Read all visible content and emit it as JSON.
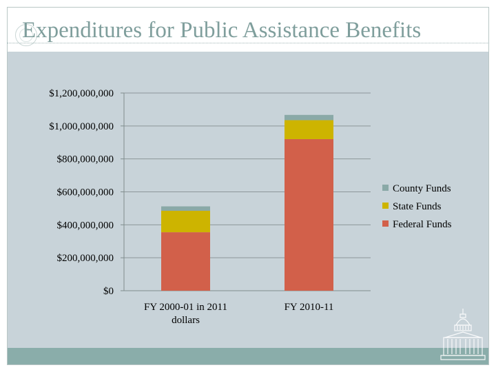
{
  "slide": {
    "title": "Expenditures for Public Assistance Benefits"
  },
  "colors": {
    "federal": "#d2604a",
    "state": "#cdb400",
    "county": "#8aa9a7",
    "background": "#c8d3d9",
    "title": "#7f9e9c",
    "footer": "#8aadaa"
  },
  "chart_data": {
    "type": "bar",
    "stacked": true,
    "categories": [
      "FY 2000-01 in 2011 dollars",
      "FY 2010-11"
    ],
    "category_label_lines": [
      [
        "FY 2000-01 in 2011",
        "dollars"
      ],
      [
        "FY 2010-11"
      ]
    ],
    "series": [
      {
        "name": "Federal Funds",
        "values": [
          355000000,
          920000000
        ],
        "color": "#d2604a"
      },
      {
        "name": "State Funds",
        "values": [
          130000000,
          115000000
        ],
        "color": "#cdb400"
      },
      {
        "name": "County Funds",
        "values": [
          27000000,
          32000000
        ],
        "color": "#8aa9a7"
      }
    ],
    "y_ticks": [
      0,
      200000000,
      400000000,
      600000000,
      800000000,
      1000000000,
      1200000000
    ],
    "y_tick_labels": [
      "$0",
      "$200,000,000",
      "$400,000,000",
      "$600,000,000",
      "$800,000,000",
      "$1,000,000,000",
      "$1,200,000,000"
    ],
    "ylim": [
      0,
      1200000000
    ],
    "grid": true,
    "legend": {
      "position": "right",
      "entries": [
        "County Funds",
        "State Funds",
        "Federal Funds"
      ]
    }
  }
}
